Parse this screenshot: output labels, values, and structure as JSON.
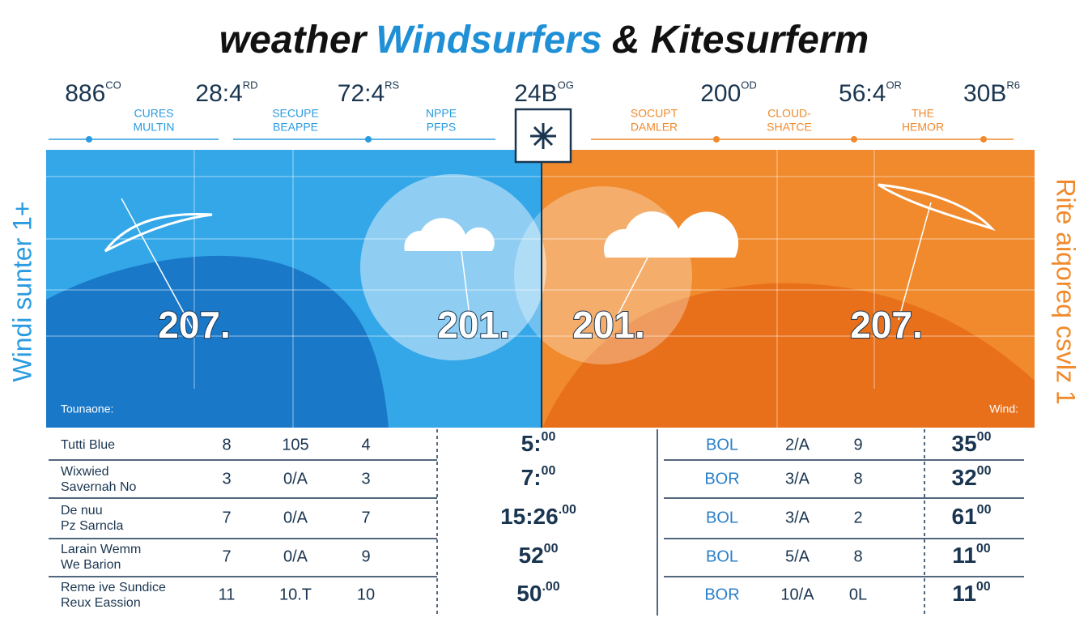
{
  "title": {
    "parts": [
      "weather",
      "Windsurfers",
      "& Kitesurferm"
    ]
  },
  "stats": [
    {
      "main": "886",
      "sup": "CO"
    },
    {
      "main": "28:4",
      "sup": "RD"
    },
    {
      "main": "72:4",
      "sup": "RS"
    },
    {
      "main": "24B",
      "sup": "OG"
    },
    {
      "main": "200",
      "sup": "OD"
    },
    {
      "main": "56:4",
      "sup": "OR"
    },
    {
      "main": "30B",
      "sup": "R6"
    }
  ],
  "stat_labels": [
    [
      "CURES",
      "MULTIN"
    ],
    [
      "SECUPE",
      "BEAPPE"
    ],
    [
      "NPPE",
      "PFPS"
    ],
    [
      "SOCUPT",
      "DAMLER"
    ],
    [
      "CLOUD-",
      "SHATCE"
    ],
    [
      "THE",
      "HEMOR"
    ]
  ],
  "panel": {
    "left_side_label": "Windi sunter 1+",
    "right_side_label": "Rite aiqoreq csvlz 1",
    "left_corner": "Tounaone:",
    "right_corner": "Wind:",
    "readings": [
      "207.",
      "201.",
      "201.",
      "207."
    ]
  },
  "table": {
    "rows": [
      {
        "name": [
          "Tutti Blue"
        ],
        "cols": [
          "8",
          "105",
          "4"
        ],
        "center": {
          "main": "5:",
          "sup": "00"
        },
        "right_cols": [
          "BOL",
          "2/A",
          "9"
        ],
        "total": {
          "main": "35",
          "sup": "00"
        }
      },
      {
        "name": [
          "Wixwied",
          "Savernah No"
        ],
        "cols": [
          "3",
          "0/A",
          "3"
        ],
        "center": {
          "main": "7:",
          "sup": "00"
        },
        "right_cols": [
          "BOR",
          "3/A",
          "8"
        ],
        "total": {
          "main": "32",
          "sup": "00"
        }
      },
      {
        "name": [
          "De nuu",
          "Pz Sarncla"
        ],
        "cols": [
          "7",
          "0/A",
          "7"
        ],
        "center": {
          "main": "15:26",
          "sup": ".00"
        },
        "right_cols": [
          "BOL",
          "3/A",
          "2"
        ],
        "total": {
          "main": "61",
          "sup": "00"
        }
      },
      {
        "name": [
          "Larain Wemm",
          "We Barion"
        ],
        "cols": [
          "7",
          "0/A",
          "9"
        ],
        "center": {
          "main": "52",
          "sup": "00"
        },
        "right_cols": [
          "BOL",
          "5/A",
          "8"
        ],
        "total": {
          "main": "11",
          "sup": "00"
        }
      },
      {
        "name": [
          "Reme ive Sundice",
          "Reux Eassion"
        ],
        "cols": [
          "11",
          "10.T",
          "10"
        ],
        "center": {
          "main": "50",
          "sup": ".00"
        },
        "right_cols": [
          "BOR",
          "10/A",
          "0L"
        ],
        "total": {
          "main": "11",
          "sup": "00"
        }
      }
    ]
  }
}
